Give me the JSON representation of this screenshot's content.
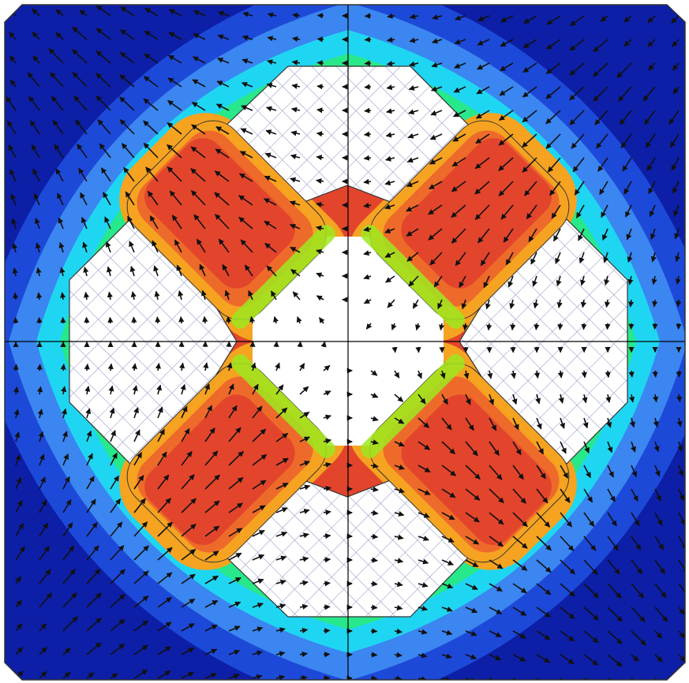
{
  "figure": {
    "kind": "magnetic flux density contour plot with flux vector arrows (quadrupole cross-section)",
    "colormap": [
      "#0d1fa6",
      "#1d49d8",
      "#3b86f0",
      "#1fd6f2",
      "#27e88a",
      "#9ee81f",
      "#f2e81c",
      "#f5a321",
      "#ee6a2a",
      "#e2452c"
    ],
    "arrow_color": "#111111",
    "mesh_color": "#9aa0cc",
    "axis_line_color": "#000000"
  }
}
